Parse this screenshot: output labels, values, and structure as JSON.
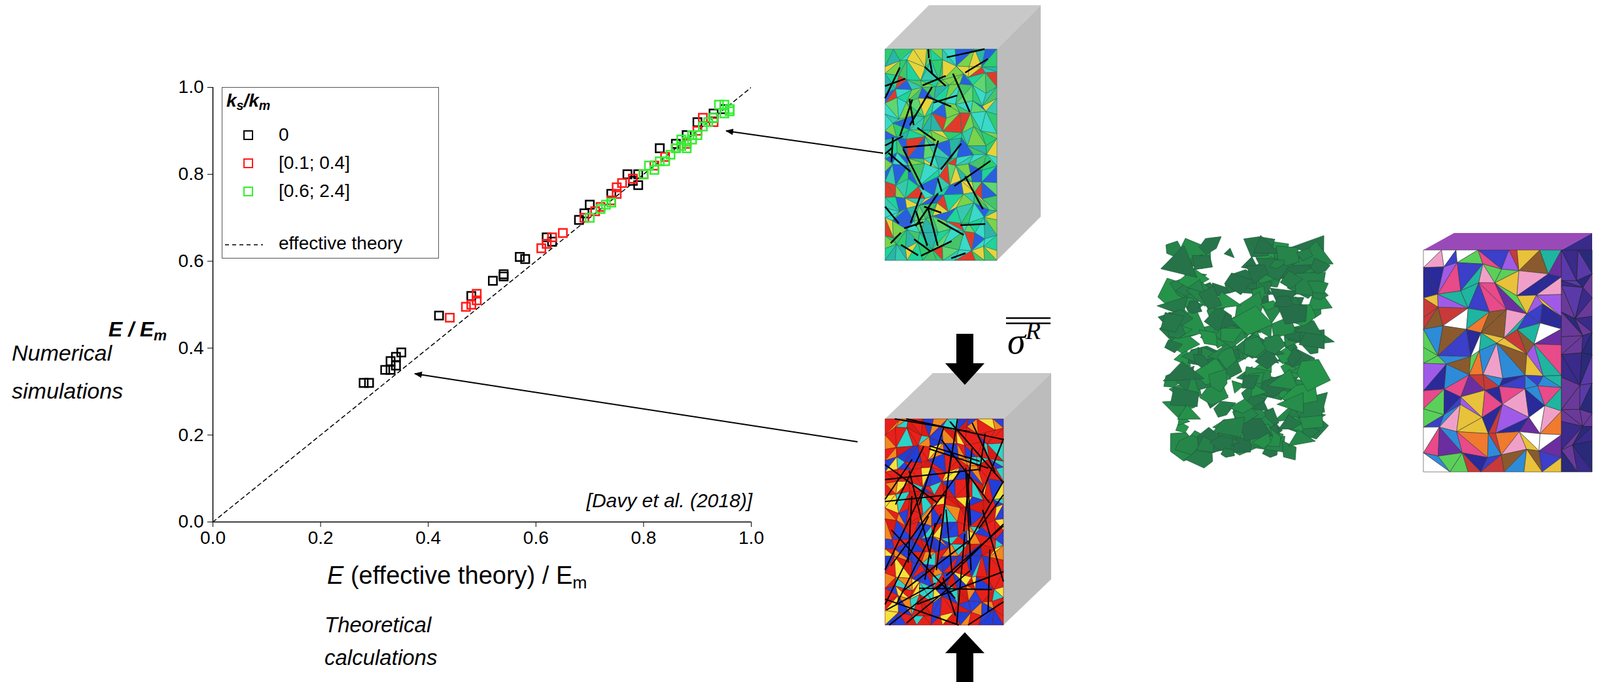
{
  "chart_data": {
    "type": "scatter",
    "x_label": [
      "E (effective theory) / E",
      "m"
    ],
    "x_sublabel": "Theoretical calculations",
    "y_label": [
      "E / E",
      "m"
    ],
    "y_sublabel": "Numerical simulations",
    "annotation": "[Davy et al. (2018)]",
    "stress_label": [
      "σ",
      "R"
    ],
    "legend_title": [
      "k",
      "s",
      "/k",
      "m"
    ],
    "legend": "top-left",
    "marker": "square",
    "xlim": [
      0,
      1
    ],
    "ylim": [
      0,
      1
    ],
    "xticks": [
      {
        "value": 0,
        "label": "0.0"
      },
      0.2,
      0.4,
      0.6,
      0.8,
      {
        "value": 1,
        "label": "1.0"
      }
    ],
    "yticks": [
      {
        "value": 0,
        "label": "0.0"
      },
      0.2,
      0.4,
      0.6,
      0.8,
      {
        "value": 1,
        "label": "1.0"
      }
    ],
    "series": [
      {
        "name": "0",
        "color": "#000000",
        "x": [
          0.28,
          0.29,
          0.32,
          0.33,
          0.33,
          0.34,
          0.35,
          0.34,
          0.42,
          0.48,
          0.52,
          0.54,
          0.54,
          0.57,
          0.58,
          0.62,
          0.63,
          0.68,
          0.69,
          0.7,
          0.74,
          0.77,
          0.78,
          0.79,
          0.79,
          0.83,
          0.86,
          0.88,
          0.9,
          0.93,
          0.95,
          0.93
        ],
        "values": [
          0.32,
          0.32,
          0.35,
          0.37,
          0.35,
          0.38,
          0.39,
          0.36,
          0.475,
          0.52,
          0.555,
          0.565,
          0.57,
          0.61,
          0.605,
          0.655,
          0.645,
          0.695,
          0.71,
          0.73,
          0.755,
          0.8,
          0.785,
          0.775,
          0.8,
          0.86,
          0.87,
          0.89,
          0.92,
          0.94,
          0.95,
          0.93
        ]
      },
      {
        "name": "[0.1; 0.4]",
        "color": "#ff1a1a",
        "x": [
          0.44,
          0.47,
          0.48,
          0.49,
          0.49,
          0.61,
          0.62,
          0.63,
          0.65,
          0.69,
          0.71,
          0.72,
          0.74,
          0.75,
          0.75,
          0.76,
          0.78,
          0.8,
          0.82,
          0.84,
          0.86,
          0.88,
          0.9,
          0.91,
          0.93
        ],
        "values": [
          0.47,
          0.495,
          0.5,
          0.51,
          0.525,
          0.63,
          0.64,
          0.655,
          0.665,
          0.7,
          0.715,
          0.725,
          0.74,
          0.755,
          0.77,
          0.78,
          0.79,
          0.8,
          0.82,
          0.84,
          0.86,
          0.87,
          0.9,
          0.93,
          0.92
        ]
      },
      {
        "name": "[0.6; 2.4]",
        "color": "#33ee33",
        "x": [
          0.7,
          0.72,
          0.73,
          0.74,
          0.8,
          0.81,
          0.82,
          0.83,
          0.84,
          0.85,
          0.86,
          0.87,
          0.88,
          0.89,
          0.89,
          0.9,
          0.91,
          0.92,
          0.93,
          0.94,
          0.95,
          0.96,
          0.96,
          0.95,
          0.87,
          0.88
        ],
        "values": [
          0.7,
          0.72,
          0.73,
          0.735,
          0.8,
          0.82,
          0.81,
          0.83,
          0.83,
          0.845,
          0.86,
          0.865,
          0.875,
          0.88,
          0.89,
          0.89,
          0.91,
          0.92,
          0.93,
          0.96,
          0.96,
          0.95,
          0.945,
          0.94,
          0.88,
          0.86
        ]
      }
    ],
    "reference_line": {
      "name": "effective theory",
      "color": "#000000",
      "line_style": "dashed",
      "x": [
        0,
        1
      ],
      "values": [
        0,
        1
      ]
    }
  }
}
